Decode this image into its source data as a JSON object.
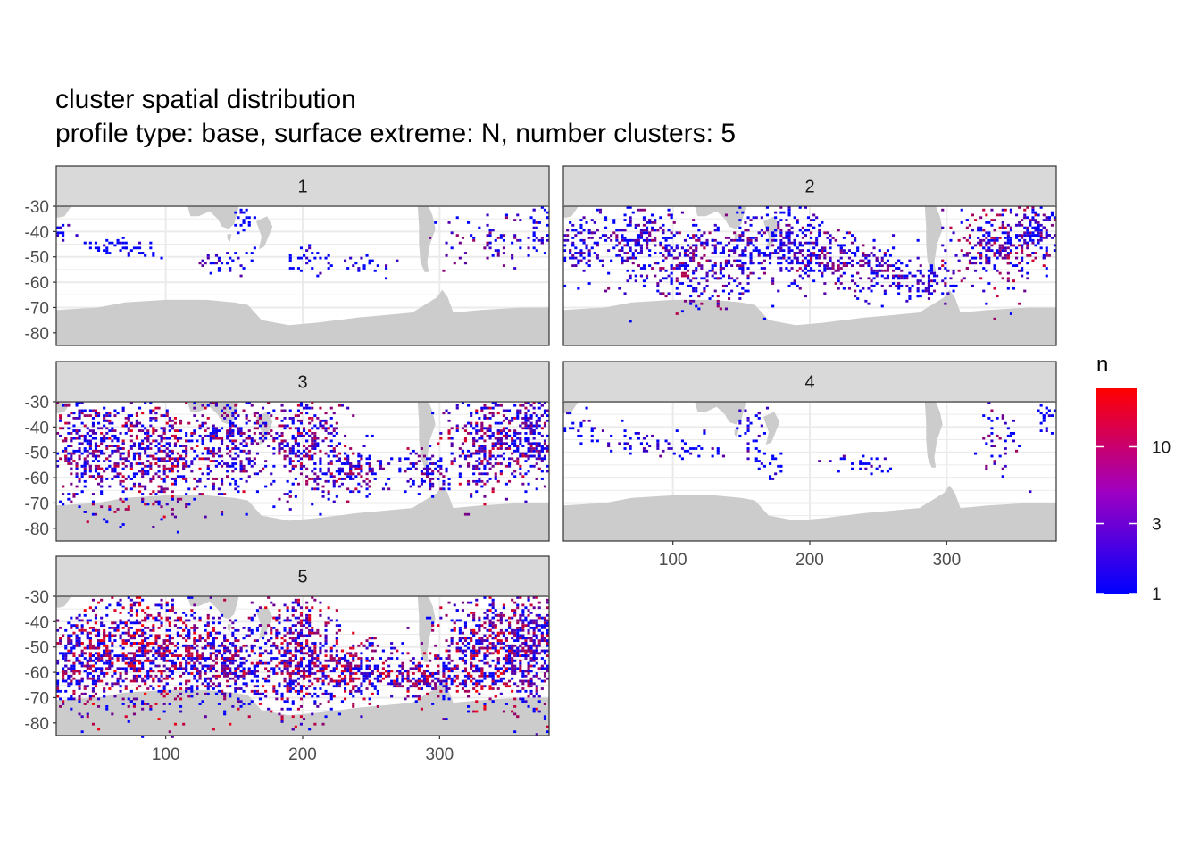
{
  "chart_data": {
    "type": "heatmap",
    "title": "cluster spatial distribution",
    "subtitle": "profile type: base, surface extreme: N, number clusters: 5",
    "xlim": [
      20,
      380
    ],
    "ylim": [
      -85,
      -30
    ],
    "x_ticks": [
      100,
      200,
      300
    ],
    "x_tick_labels": [
      "100",
      "200",
      "300"
    ],
    "y_ticks": [
      -30,
      -40,
      -50,
      -60,
      -70,
      -80
    ],
    "y_tick_labels": [
      "-30",
      "-40",
      "-50",
      "-60",
      "-70",
      "-80"
    ],
    "grid": true,
    "legend": {
      "title": "n",
      "scale": "log",
      "range": [
        1,
        25
      ],
      "ticks": [
        1,
        3,
        10
      ],
      "tick_labels": [
        "1",
        "3",
        "10"
      ],
      "low_color": "#0000ff",
      "high_color": "#ff0000",
      "position": "right"
    },
    "colors": {
      "land": "#cccccc",
      "strip": "#d9d9d9",
      "panel": "#ffffff",
      "grid": "#ebebeb",
      "frame": "#333333"
    },
    "panels": [
      {
        "label": "1",
        "density": 0.1,
        "hotspots": [
          {
            "lon": 22,
            "lat": -40,
            "lon_spread": 4,
            "lat_spread": 2,
            "n": 3
          },
          {
            "lon": 55,
            "lat": -45,
            "lon_spread": 8,
            "lat_spread": 2,
            "n": 2
          },
          {
            "lon": 80,
            "lat": -47,
            "lon_spread": 12,
            "lat_spread": 2,
            "n": 2
          },
          {
            "lon": 155,
            "lat": -35,
            "lon_spread": 4,
            "lat_spread": 4,
            "n": 2
          },
          {
            "lon": 145,
            "lat": -52,
            "lon_spread": 12,
            "lat_spread": 3,
            "n": 4
          },
          {
            "lon": 205,
            "lat": -50,
            "lon_spread": 10,
            "lat_spread": 3,
            "n": 3
          },
          {
            "lon": 240,
            "lat": -53,
            "lon_spread": 12,
            "lat_spread": 2,
            "n": 3
          },
          {
            "lon": 337,
            "lat": -42,
            "lon_spread": 18,
            "lat_spread": 6,
            "n": 14
          },
          {
            "lon": 373,
            "lat": -38,
            "lon_spread": 6,
            "lat_spread": 6,
            "n": 4
          }
        ]
      },
      {
        "label": "2",
        "density": 0.28,
        "hotspots": [
          {
            "lon": 30,
            "lat": -46,
            "lon_spread": 10,
            "lat_spread": 6,
            "n": 6
          },
          {
            "lon": 75,
            "lat": -44,
            "lon_spread": 15,
            "lat_spread": 8,
            "n": 10
          },
          {
            "lon": 115,
            "lat": -52,
            "lon_spread": 15,
            "lat_spread": 9,
            "n": 16
          },
          {
            "lon": 150,
            "lat": -48,
            "lon_spread": 10,
            "lat_spread": 8,
            "n": 10
          },
          {
            "lon": 185,
            "lat": -45,
            "lon_spread": 12,
            "lat_spread": 9,
            "n": 8
          },
          {
            "lon": 215,
            "lat": -50,
            "lon_spread": 15,
            "lat_spread": 6,
            "n": 14
          },
          {
            "lon": 250,
            "lat": -55,
            "lon_spread": 12,
            "lat_spread": 5,
            "n": 8
          },
          {
            "lon": 285,
            "lat": -59,
            "lon_spread": 12,
            "lat_spread": 4,
            "n": 6
          },
          {
            "lon": 340,
            "lat": -45,
            "lon_spread": 20,
            "lat_spread": 9,
            "n": 24
          },
          {
            "lon": 367,
            "lat": -38,
            "lon_spread": 10,
            "lat_spread": 5,
            "n": 8
          }
        ]
      },
      {
        "label": "3",
        "density": 0.35,
        "hotspots": [
          {
            "lon": 40,
            "lat": -48,
            "lon_spread": 18,
            "lat_spread": 10,
            "n": 22
          },
          {
            "lon": 95,
            "lat": -50,
            "lon_spread": 22,
            "lat_spread": 11,
            "n": 30
          },
          {
            "lon": 150,
            "lat": -46,
            "lon_spread": 12,
            "lat_spread": 10,
            "n": 16
          },
          {
            "lon": 200,
            "lat": -45,
            "lon_spread": 14,
            "lat_spread": 10,
            "n": 22
          },
          {
            "lon": 235,
            "lat": -57,
            "lon_spread": 15,
            "lat_spread": 5,
            "n": 20
          },
          {
            "lon": 290,
            "lat": -58,
            "lon_spread": 10,
            "lat_spread": 4,
            "n": 10
          },
          {
            "lon": 338,
            "lat": -46,
            "lon_spread": 18,
            "lat_spread": 10,
            "n": 26
          },
          {
            "lon": 370,
            "lat": -42,
            "lon_spread": 8,
            "lat_spread": 9,
            "n": 12
          }
        ]
      },
      {
        "label": "4",
        "density": 0.1,
        "hotspots": [
          {
            "lon": 30,
            "lat": -40,
            "lon_spread": 10,
            "lat_spread": 3,
            "n": 5
          },
          {
            "lon": 75,
            "lat": -46,
            "lon_spread": 15,
            "lat_spread": 3,
            "n": 6
          },
          {
            "lon": 120,
            "lat": -48,
            "lon_spread": 15,
            "lat_spread": 2,
            "n": 4
          },
          {
            "lon": 155,
            "lat": -38,
            "lon_spread": 6,
            "lat_spread": 6,
            "n": 5
          },
          {
            "lon": 172,
            "lat": -55,
            "lon_spread": 6,
            "lat_spread": 3,
            "n": 2
          },
          {
            "lon": 235,
            "lat": -54,
            "lon_spread": 15,
            "lat_spread": 2,
            "n": 5
          },
          {
            "lon": 338,
            "lat": -45,
            "lon_spread": 8,
            "lat_spread": 7,
            "n": 12
          },
          {
            "lon": 373,
            "lat": -36,
            "lon_spread": 4,
            "lat_spread": 4,
            "n": 2
          }
        ]
      },
      {
        "label": "5",
        "density": 0.42,
        "hotspots": [
          {
            "lon": 35,
            "lat": -55,
            "lon_spread": 14,
            "lat_spread": 9,
            "n": 28
          },
          {
            "lon": 85,
            "lat": -50,
            "lon_spread": 25,
            "lat_spread": 12,
            "n": 45
          },
          {
            "lon": 140,
            "lat": -55,
            "lon_spread": 18,
            "lat_spread": 9,
            "n": 25
          },
          {
            "lon": 195,
            "lat": -52,
            "lon_spread": 15,
            "lat_spread": 12,
            "n": 32
          },
          {
            "lon": 235,
            "lat": -58,
            "lon_spread": 20,
            "lat_spread": 6,
            "n": 30
          },
          {
            "lon": 290,
            "lat": -62,
            "lon_spread": 18,
            "lat_spread": 4,
            "n": 30
          },
          {
            "lon": 335,
            "lat": -50,
            "lon_spread": 20,
            "lat_spread": 11,
            "n": 40
          },
          {
            "lon": 368,
            "lat": -50,
            "lon_spread": 10,
            "lat_spread": 13,
            "n": 20
          }
        ]
      }
    ]
  }
}
